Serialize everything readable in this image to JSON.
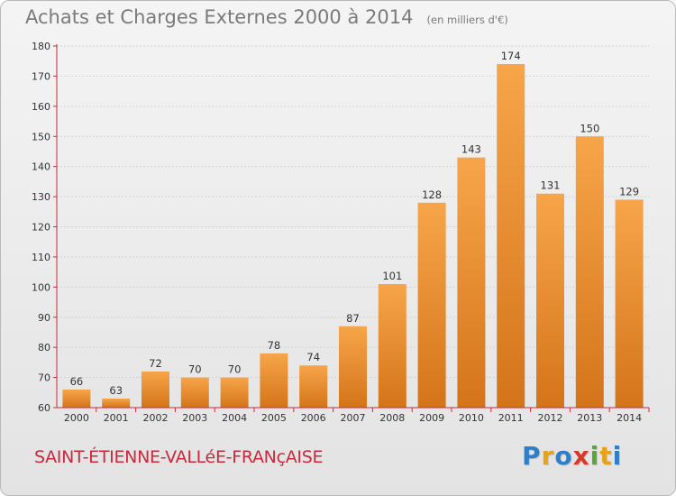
{
  "title": "Achats et Charges Externes 2000 à 2014",
  "subtitle": "(en milliers d'€)",
  "location": "SAINT-ÉTIENNE-VALLéE-FRANçAISE",
  "logo_text": "Proxiti",
  "colors": {
    "bar_light": "#f7a54a",
    "bar_dark": "#d4741a",
    "axis": "#c8293c",
    "text": "#333333",
    "logo": [
      "#2f7fc8",
      "#e8a21a",
      "#2f7fc8",
      "#d83a2a",
      "#59a63a",
      "#e8a21a",
      "#2f7fc8"
    ]
  },
  "chart_data": {
    "type": "bar",
    "title": "Achats et Charges Externes 2000 à 2014",
    "subtitle": "(en milliers d'€)",
    "xlabel": "",
    "ylabel": "",
    "categories": [
      "2000",
      "2001",
      "2002",
      "2003",
      "2004",
      "2005",
      "2006",
      "2007",
      "2008",
      "2009",
      "2010",
      "2011",
      "2012",
      "2013",
      "2014"
    ],
    "values": [
      66,
      63,
      72,
      70,
      70,
      78,
      74,
      87,
      101,
      128,
      143,
      174,
      131,
      150,
      129
    ],
    "ylim": [
      60,
      180
    ],
    "yticks": [
      60,
      70,
      80,
      90,
      100,
      110,
      120,
      130,
      140,
      150,
      160,
      170,
      180
    ],
    "grid": true
  }
}
